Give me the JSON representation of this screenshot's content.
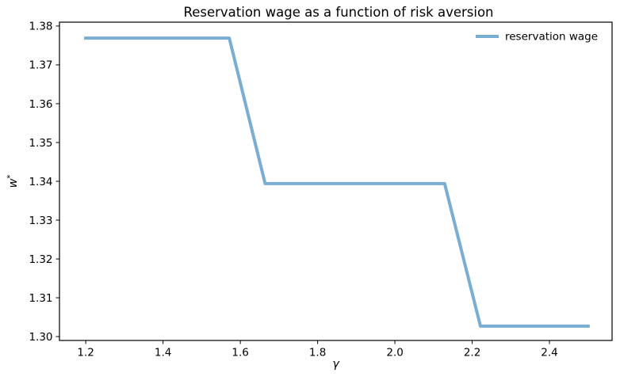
{
  "chart_data": {
    "type": "line",
    "title": "Reservation wage as a function of risk aversion",
    "xlabel": "γ",
    "ylabel": "w*",
    "ylabel_base": "w",
    "ylabel_sup": "*",
    "grid": false,
    "legend_position": "upper right",
    "legend": [
      {
        "label": "reservation wage",
        "color": "#79ADD2"
      }
    ],
    "xlim": [
      1.132,
      2.562
    ],
    "ylim": [
      1.299,
      1.381
    ],
    "xticks": [
      1.2,
      1.4,
      1.6,
      1.8,
      2.0,
      2.2,
      2.4
    ],
    "xtick_labels": [
      "1.2",
      "1.4",
      "1.6",
      "1.8",
      "2.0",
      "2.2",
      "2.4"
    ],
    "yticks": [
      1.3,
      1.31,
      1.32,
      1.33,
      1.34,
      1.35,
      1.36,
      1.37,
      1.38
    ],
    "ytick_labels": [
      "1.30",
      "1.31",
      "1.32",
      "1.33",
      "1.34",
      "1.35",
      "1.36",
      "1.37",
      "1.38"
    ],
    "series": [
      {
        "name": "reservation wage",
        "color": "#79ADD2",
        "line_width": 4,
        "x": [
          1.2,
          1.2929,
          1.3857,
          1.4786,
          1.5714,
          1.6643,
          1.7571,
          1.85,
          1.9429,
          2.0357,
          2.1286,
          2.2214,
          2.3143,
          2.4071,
          2.5
        ],
        "y": [
          1.3769,
          1.3769,
          1.3769,
          1.3769,
          1.3769,
          1.3394,
          1.3394,
          1.3394,
          1.3394,
          1.3394,
          1.3394,
          1.3027,
          1.3027,
          1.3027,
          1.3027
        ]
      }
    ]
  }
}
